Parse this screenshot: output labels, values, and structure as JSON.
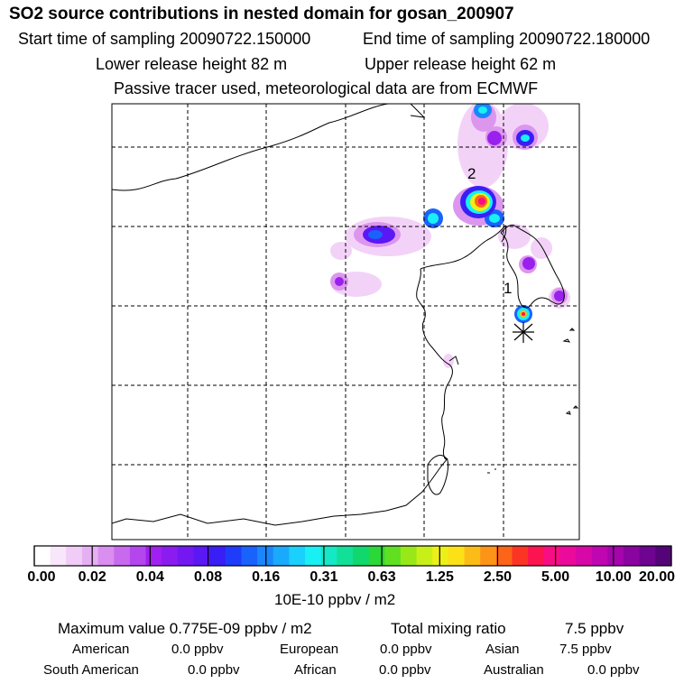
{
  "header": {
    "title": "SO2 source contributions in nested domain for gosan_200907",
    "start_time": "Start time of sampling 20090722.150000",
    "end_time": "End time of sampling 20090722.180000",
    "lower_height": "Lower release height   82 m",
    "upper_height": "Upper release height   62 m",
    "info": "Passive tracer used, meteorological data are from ECMWF"
  },
  "map": {
    "labels": {
      "label_1": "1",
      "label_2": "2"
    },
    "legend": {
      "ticks": [
        "0.00",
        "0.02",
        "0.04",
        "0.08",
        "0.16",
        "0.31",
        "0.63",
        "1.25",
        "2.50",
        "5.00",
        "10.00",
        "20.00"
      ],
      "units": "10E-10 ppbv / m2",
      "colors": [
        "#ffffff",
        "#f8e6fb",
        "#f0ccf6",
        "#e5b0f2",
        "#d98ef0",
        "#c86aee",
        "#b546ee",
        "#a020f0",
        "#8a1cf0",
        "#7418f2",
        "#5a18f4",
        "#3a1ef6",
        "#1e3cfa",
        "#1a62fc",
        "#1a86fc",
        "#1aaafc",
        "#1ad0fc",
        "#18f0f4",
        "#14e8c4",
        "#12e098",
        "#10d86c",
        "#2ad83a",
        "#60e020",
        "#98e818",
        "#c8f018",
        "#ecf018",
        "#fce018",
        "#fcbc18",
        "#fc9418",
        "#fc6418",
        "#fc3424",
        "#fc1450",
        "#f80e84",
        "#ec0a9c",
        "#d808a8",
        "#c006b0",
        "#a604ac",
        "#8a04a0",
        "#6e0490",
        "#540478"
      ]
    }
  },
  "stats": {
    "maximum": "Maximum value  0.775E-09 ppbv / m2",
    "total_label": "Total mixing ratio",
    "total_value": "7.5 ppbv",
    "american_label": "American",
    "american_value": "0.0 ppbv",
    "european_label": "European",
    "european_value": "0.0 ppbv",
    "asian_label": "Asian",
    "asian_value": "7.5 ppbv",
    "south_american_label": "South American",
    "south_american_value": "0.0 ppbv",
    "african_label": "African",
    "african_value": "0.0 ppbv",
    "australian_label": "Australian",
    "australian_value": "0.0 ppbv"
  }
}
